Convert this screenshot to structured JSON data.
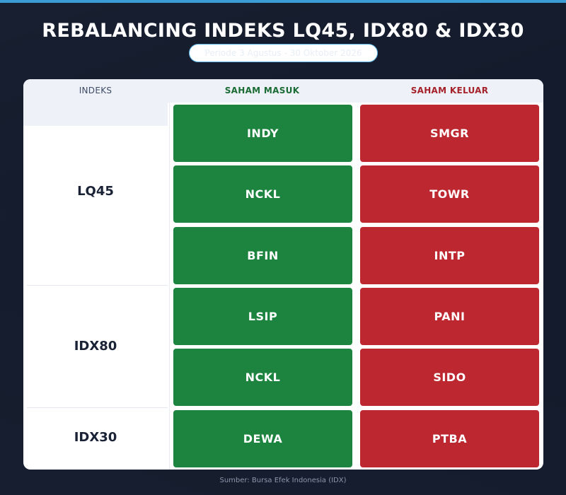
{
  "title": "REBALANCING INDEKS LQ45, IDX80 & IDX30",
  "period": "Periode 3 Agustus - 30 Oktober 2026",
  "table": {
    "headers": {
      "index": "INDEKS",
      "in": "SAHAM MASUK",
      "out": "SAHAM KELUAR"
    },
    "groups": [
      {
        "index": "LQ45",
        "rows": [
          {
            "in": "INDY",
            "out": "SMGR"
          },
          {
            "in": "NCKL",
            "out": "TOWR"
          },
          {
            "in": "BFIN",
            "out": "INTP"
          }
        ]
      },
      {
        "index": "IDX80",
        "rows": [
          {
            "in": "LSIP",
            "out": "PANI"
          },
          {
            "in": "NCKL",
            "out": "SIDO"
          }
        ]
      },
      {
        "index": "IDX30",
        "rows": [
          {
            "in": "DEWA",
            "out": "PTBA"
          }
        ]
      }
    ]
  },
  "source": "Sumber: Bursa Efek Indonesia (IDX)",
  "colors": {
    "accent": "#3c9dd6",
    "in": "#1c843e",
    "out": "#bd2730",
    "background": "#131b2c"
  }
}
